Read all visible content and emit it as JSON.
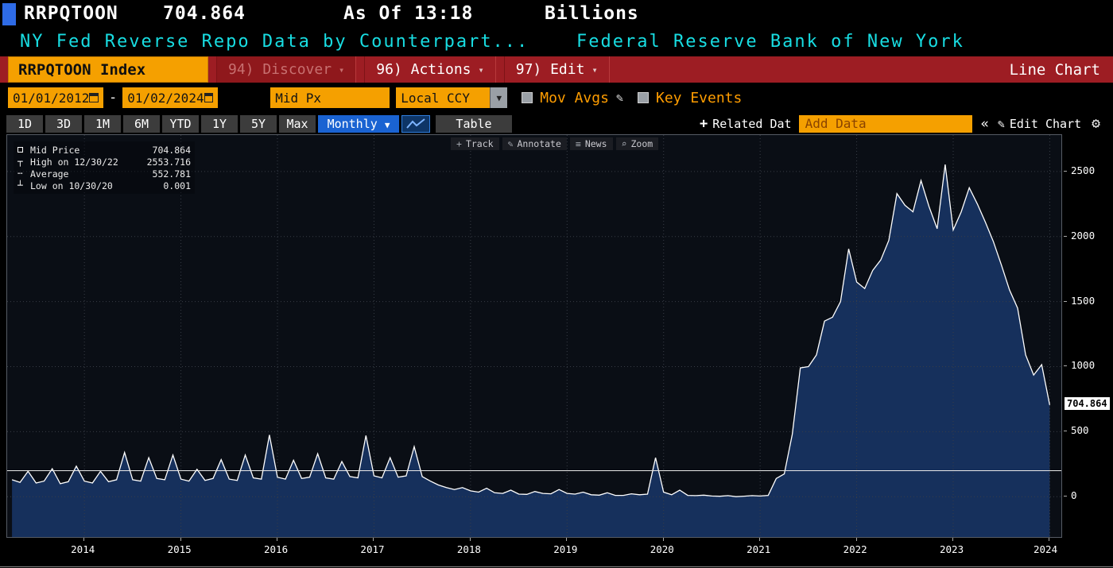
{
  "titlebar": {
    "ticker": "RRPQTOON",
    "last_value": "704.864",
    "as_of": "As Of 13:18",
    "units": "Billions",
    "description": "NY Fed Reverse Repo Data by Counterpart...",
    "source": "Federal Reserve Bank of New York"
  },
  "menubar": {
    "security_tab": "RRPQTOON Index",
    "discover": "94) Discover",
    "actions": "96) Actions",
    "edit": "97) Edit",
    "chart_type": "Line Chart"
  },
  "controls": {
    "date_from": "01/01/2012",
    "date_sep": "-",
    "date_to": "01/02/2024",
    "price_field": "Mid Px",
    "currency": "Local CCY",
    "mov_avgs_label": "Mov Avgs",
    "key_events_label": "Key Events"
  },
  "toolbar": {
    "period_tabs": [
      "1D",
      "3D",
      "1M",
      "6M",
      "YTD",
      "1Y",
      "5Y",
      "Max"
    ],
    "frequency": "Monthly",
    "table_label": "Table",
    "related_data_label": "Related Dat",
    "add_data_placeholder": "Add Data",
    "collapse_label": "«",
    "edit_chart_label": "Edit Chart"
  },
  "icons": {
    "caret_down_small": "▾",
    "caret_down": "▼",
    "plus": "+",
    "pencil": "✎",
    "gear": "⚙",
    "collapse": "«"
  },
  "chart_tools": [
    {
      "icon": "plus",
      "label": "Track"
    },
    {
      "icon": "pencil",
      "label": "Annotate"
    },
    {
      "icon": "list",
      "label": "News"
    },
    {
      "icon": "magnifier",
      "label": "Zoom"
    }
  ],
  "legend": [
    {
      "marker": "square",
      "label": "Mid Price",
      "value": "704.864"
    },
    {
      "marker": "high",
      "label": "High on 12/30/22",
      "value": "2553.716"
    },
    {
      "marker": "dash",
      "label": "Average",
      "value": "552.781"
    },
    {
      "marker": "low",
      "label": "Low on 10/30/20",
      "value": "0.001"
    }
  ],
  "chart_data": {
    "type": "area",
    "title": "RRPQTOON Index - NY Fed Reverse Repo Data by Counterparty (Monthly, Billions USD)",
    "x_start": 2013.25,
    "x_step_years": 0.0833333,
    "values": [
      130,
      110,
      195,
      105,
      120,
      215,
      100,
      115,
      235,
      120,
      105,
      195,
      115,
      130,
      340,
      130,
      120,
      300,
      140,
      130,
      320,
      135,
      120,
      210,
      125,
      140,
      285,
      135,
      125,
      320,
      145,
      135,
      475,
      150,
      135,
      280,
      140,
      150,
      330,
      145,
      135,
      270,
      155,
      145,
      470,
      160,
      145,
      300,
      150,
      160,
      385,
      155,
      120,
      90,
      70,
      55,
      70,
      45,
      35,
      65,
      30,
      25,
      50,
      20,
      18,
      40,
      25,
      22,
      55,
      25,
      20,
      35,
      15,
      12,
      30,
      10,
      10,
      22,
      15,
      20,
      300,
      35,
      15,
      50,
      10,
      8,
      12,
      5,
      3,
      8,
      0.001,
      4,
      8,
      5,
      10,
      140,
      175,
      480,
      990,
      1000,
      1090,
      1350,
      1380,
      1500,
      1905,
      1650,
      1600,
      1740,
      1820,
      1970,
      2330,
      2240,
      2190,
      2430,
      2230,
      2060,
      2553.716,
      2050,
      2190,
      2375,
      2250,
      2110,
      1960,
      1780,
      1590,
      1450,
      1090,
      935,
      1015,
      704.864
    ],
    "x_ticks": [
      2014,
      2015,
      2016,
      2017,
      2018,
      2019,
      2020,
      2021,
      2022,
      2023,
      2024
    ],
    "x_tick_labels": [
      "2014",
      "2015",
      "2016",
      "2017",
      "2018",
      "2019",
      "2020",
      "2021",
      "2022",
      "2023",
      "2024"
    ],
    "y_ticks": [
      0,
      500,
      1000,
      1500,
      2000,
      2500
    ],
    "x_domain": [
      2013.2,
      2024.12
    ],
    "y_domain": [
      -310,
      2780
    ],
    "last_price": 704.864,
    "last_price_label": "704.864",
    "reference_line": 200,
    "high": 2553.716,
    "low": 0.001,
    "average": 552.781,
    "line_color": "#ffffff",
    "fill_color": "#16305c",
    "grid_color": "#383d46",
    "background": "#0a0e15",
    "legend_position": "top-left",
    "grid": true
  }
}
